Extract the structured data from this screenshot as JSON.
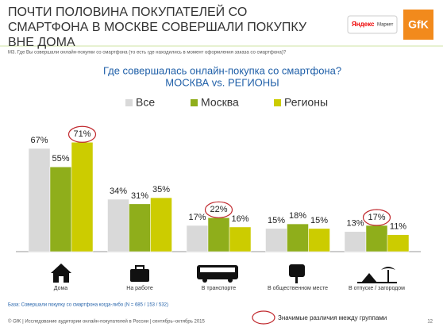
{
  "header": {
    "title": "ПОЧТИ ПОЛОВИНА ПОКУПАТЕЛЕЙ СО СМАРТФОНА В МОСКВЕ СОВЕРШАЛИ ПОКУПКУ ВНЕ ДОМА",
    "logo_yandex": "Яндекс",
    "logo_market": "Маркет",
    "logo_gfk": "GfK"
  },
  "question": "M3. Где Вы совершали онлайн-покупки со смартфона (то есть где находились в момент оформления заказа со смартфона)?",
  "chart_data": {
    "type": "bar",
    "title": "Где совершалась онлайн-покупка со смартфона?",
    "subtitle": "МОСКВА vs. РЕГИОНЫ",
    "categories": [
      "Дома",
      "На работе",
      "В транспорте",
      "В общественном месте",
      "В отпуске / загородом"
    ],
    "series": [
      {
        "name": "Все",
        "color": "#d9d9d9",
        "values": [
          67,
          34,
          17,
          15,
          13
        ],
        "value_labels": [
          "67%",
          "34%",
          "17%",
          "15%",
          "13%"
        ],
        "highlight": [
          false,
          false,
          false,
          false,
          false
        ]
      },
      {
        "name": "Москва",
        "color": "#8fae1b",
        "values": [
          55,
          31,
          22,
          18,
          17
        ],
        "value_labels": [
          "55%",
          "31%",
          "22%",
          "18%",
          "17%"
        ],
        "highlight": [
          false,
          false,
          true,
          false,
          true
        ]
      },
      {
        "name": "Регионы",
        "color": "#cccc00",
        "values": [
          71,
          35,
          16,
          15,
          11
        ],
        "value_labels": [
          "71%",
          "35%",
          "16%",
          "15%",
          "11%"
        ],
        "highlight": [
          true,
          false,
          false,
          false,
          false
        ]
      }
    ],
    "highlight_color": "#c0282d",
    "highlight_note": "Значимые различия между группами"
  },
  "footer": {
    "base": "База: Совершали покупку со смартфона когда-либо (N = 685 / 153 / 532)",
    "copyright": "© GfK | Исследование аудитории онлайн-покупателей в России | сентябрь–октябрь 2015",
    "page": "12"
  }
}
